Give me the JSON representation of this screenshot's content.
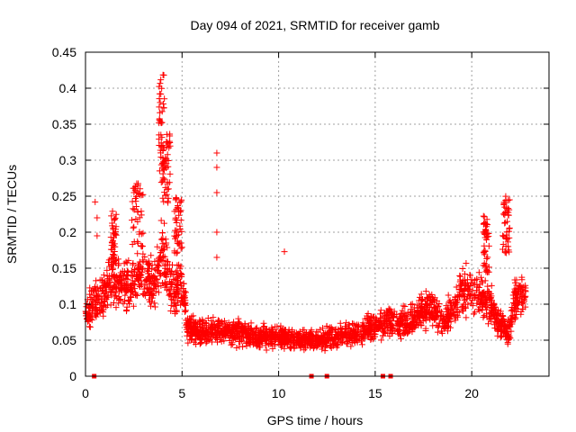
{
  "chart_data": {
    "type": "scatter",
    "title": "Day 094 of 2021, SRMTID for receiver gamb",
    "xlabel": "GPS time / hours",
    "ylabel": "SRMTID / TECUs",
    "xlim": [
      0,
      24
    ],
    "ylim": [
      0,
      0.45
    ],
    "xticks": [
      0,
      5,
      10,
      15,
      20
    ],
    "xtick_labels": [
      "0",
      "5",
      "10",
      "15",
      "20"
    ],
    "yticks": [
      0,
      0.05,
      0.1,
      0.15,
      0.2,
      0.25,
      0.3,
      0.35,
      0.4,
      0.45
    ],
    "ytick_labels": [
      "0",
      "0.05",
      "0.1",
      "0.15",
      "0.2",
      "0.25",
      "0.3",
      "0.35",
      "0.4",
      "0.45"
    ],
    "grid": true,
    "marker": "+",
    "color": "#ff0000",
    "trend": [
      [
        0.0,
        0.085
      ],
      [
        0.5,
        0.105
      ],
      [
        1.0,
        0.115
      ],
      [
        1.5,
        0.14
      ],
      [
        2.0,
        0.125
      ],
      [
        2.5,
        0.135
      ],
      [
        3.0,
        0.14
      ],
      [
        3.5,
        0.125
      ],
      [
        4.0,
        0.17
      ],
      [
        4.5,
        0.12
      ],
      [
        5.0,
        0.12
      ],
      [
        5.3,
        0.07
      ],
      [
        6.0,
        0.06
      ],
      [
        7.0,
        0.065
      ],
      [
        8.0,
        0.06
      ],
      [
        9.0,
        0.055
      ],
      [
        10.0,
        0.055
      ],
      [
        11.0,
        0.05
      ],
      [
        12.0,
        0.05
      ],
      [
        13.0,
        0.055
      ],
      [
        14.0,
        0.06
      ],
      [
        15.0,
        0.07
      ],
      [
        16.0,
        0.075
      ],
      [
        17.0,
        0.075
      ],
      [
        17.8,
        0.1
      ],
      [
        18.5,
        0.075
      ],
      [
        19.0,
        0.09
      ],
      [
        19.5,
        0.12
      ],
      [
        20.0,
        0.12
      ],
      [
        20.5,
        0.11
      ],
      [
        21.0,
        0.1
      ],
      [
        21.5,
        0.07
      ],
      [
        21.9,
        0.06
      ],
      [
        22.3,
        0.11
      ],
      [
        22.8,
        0.11
      ]
    ],
    "spikes": [
      {
        "x": [
          2.4,
          3.0
        ],
        "y": [
          0.18,
          0.27
        ]
      },
      {
        "x": [
          1.3,
          1.6
        ],
        "y": [
          0.15,
          0.23
        ]
      },
      {
        "x": [
          3.8,
          4.1
        ],
        "y": [
          0.26,
          0.43
        ]
      },
      {
        "x": [
          4.0,
          4.4
        ],
        "y": [
          0.24,
          0.34
        ]
      },
      {
        "x": [
          4.6,
          5.0
        ],
        "y": [
          0.17,
          0.25
        ]
      },
      {
        "x": [
          21.6,
          22.0
        ],
        "y": [
          0.17,
          0.255
        ]
      },
      {
        "x": [
          20.6,
          20.9
        ],
        "y": [
          0.14,
          0.225
        ]
      }
    ],
    "isolated_points": [
      {
        "x": 6.8,
        "y": 0.31
      },
      {
        "x": 6.8,
        "y": 0.29
      },
      {
        "x": 6.8,
        "y": 0.255
      },
      {
        "x": 6.8,
        "y": 0.2
      },
      {
        "x": 6.8,
        "y": 0.165
      },
      {
        "x": 10.3,
        "y": 0.173
      },
      {
        "x": 0.5,
        "y": 0.242
      },
      {
        "x": 0.6,
        "y": 0.22
      },
      {
        "x": 0.6,
        "y": 0.195
      }
    ],
    "gap_markers": [
      {
        "x": 0.45,
        "y": 0
      },
      {
        "x": 11.7,
        "y": 0
      },
      {
        "x": 12.5,
        "y": 0
      },
      {
        "x": 15.4,
        "y": 0
      },
      {
        "x": 15.8,
        "y": 0
      }
    ],
    "x_end": 22.8
  }
}
